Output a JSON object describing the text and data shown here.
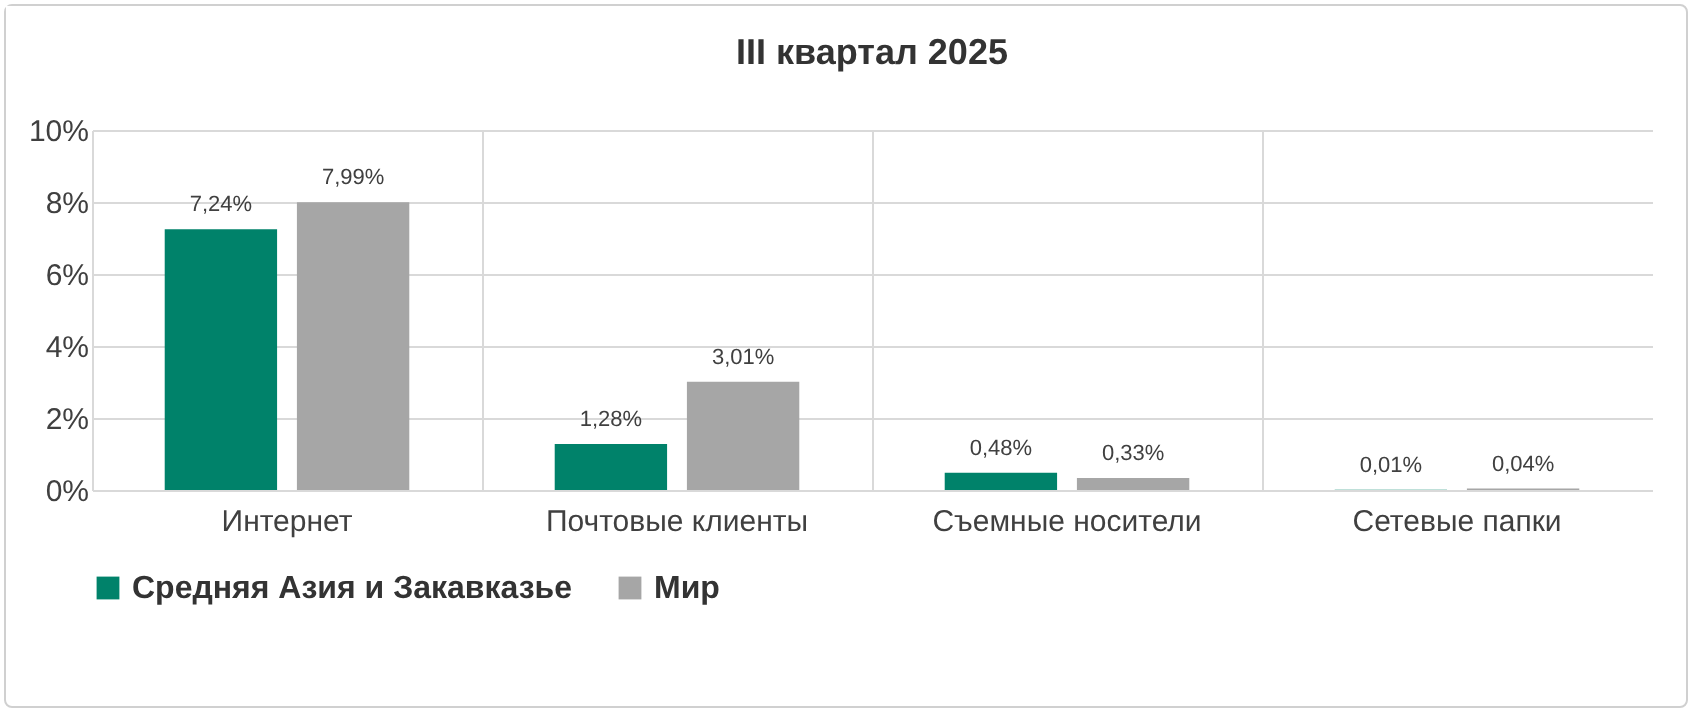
{
  "chart_data": {
    "type": "bar",
    "title": "III квартал 2025",
    "categories": [
      "Интернет",
      "Почтовые клиенты",
      "Съемные носители",
      "Сетевые папки"
    ],
    "series": [
      {
        "name": "Средняя Азия и Закавказье",
        "color": "#00826a",
        "values": [
          7.24,
          1.28,
          0.48,
          0.01
        ],
        "value_labels": [
          "7,24%",
          "1,28%",
          "0,48%",
          "0,01%"
        ]
      },
      {
        "name": "Мир",
        "color": "#a6a6a6",
        "values": [
          7.99,
          3.01,
          0.33,
          0.04
        ],
        "value_labels": [
          "7,99%",
          "3,01%",
          "0,33%",
          "0,04%"
        ]
      }
    ],
    "ylim": [
      0,
      10
    ],
    "yticks": [
      {
        "value": 0,
        "label": "0%"
      },
      {
        "value": 2,
        "label": "2%"
      },
      {
        "value": 4,
        "label": "4%"
      },
      {
        "value": 6,
        "label": "6%"
      },
      {
        "value": 8,
        "label": "8%"
      },
      {
        "value": 10,
        "label": "10%"
      }
    ],
    "grid": true,
    "legend": "bottom"
  }
}
